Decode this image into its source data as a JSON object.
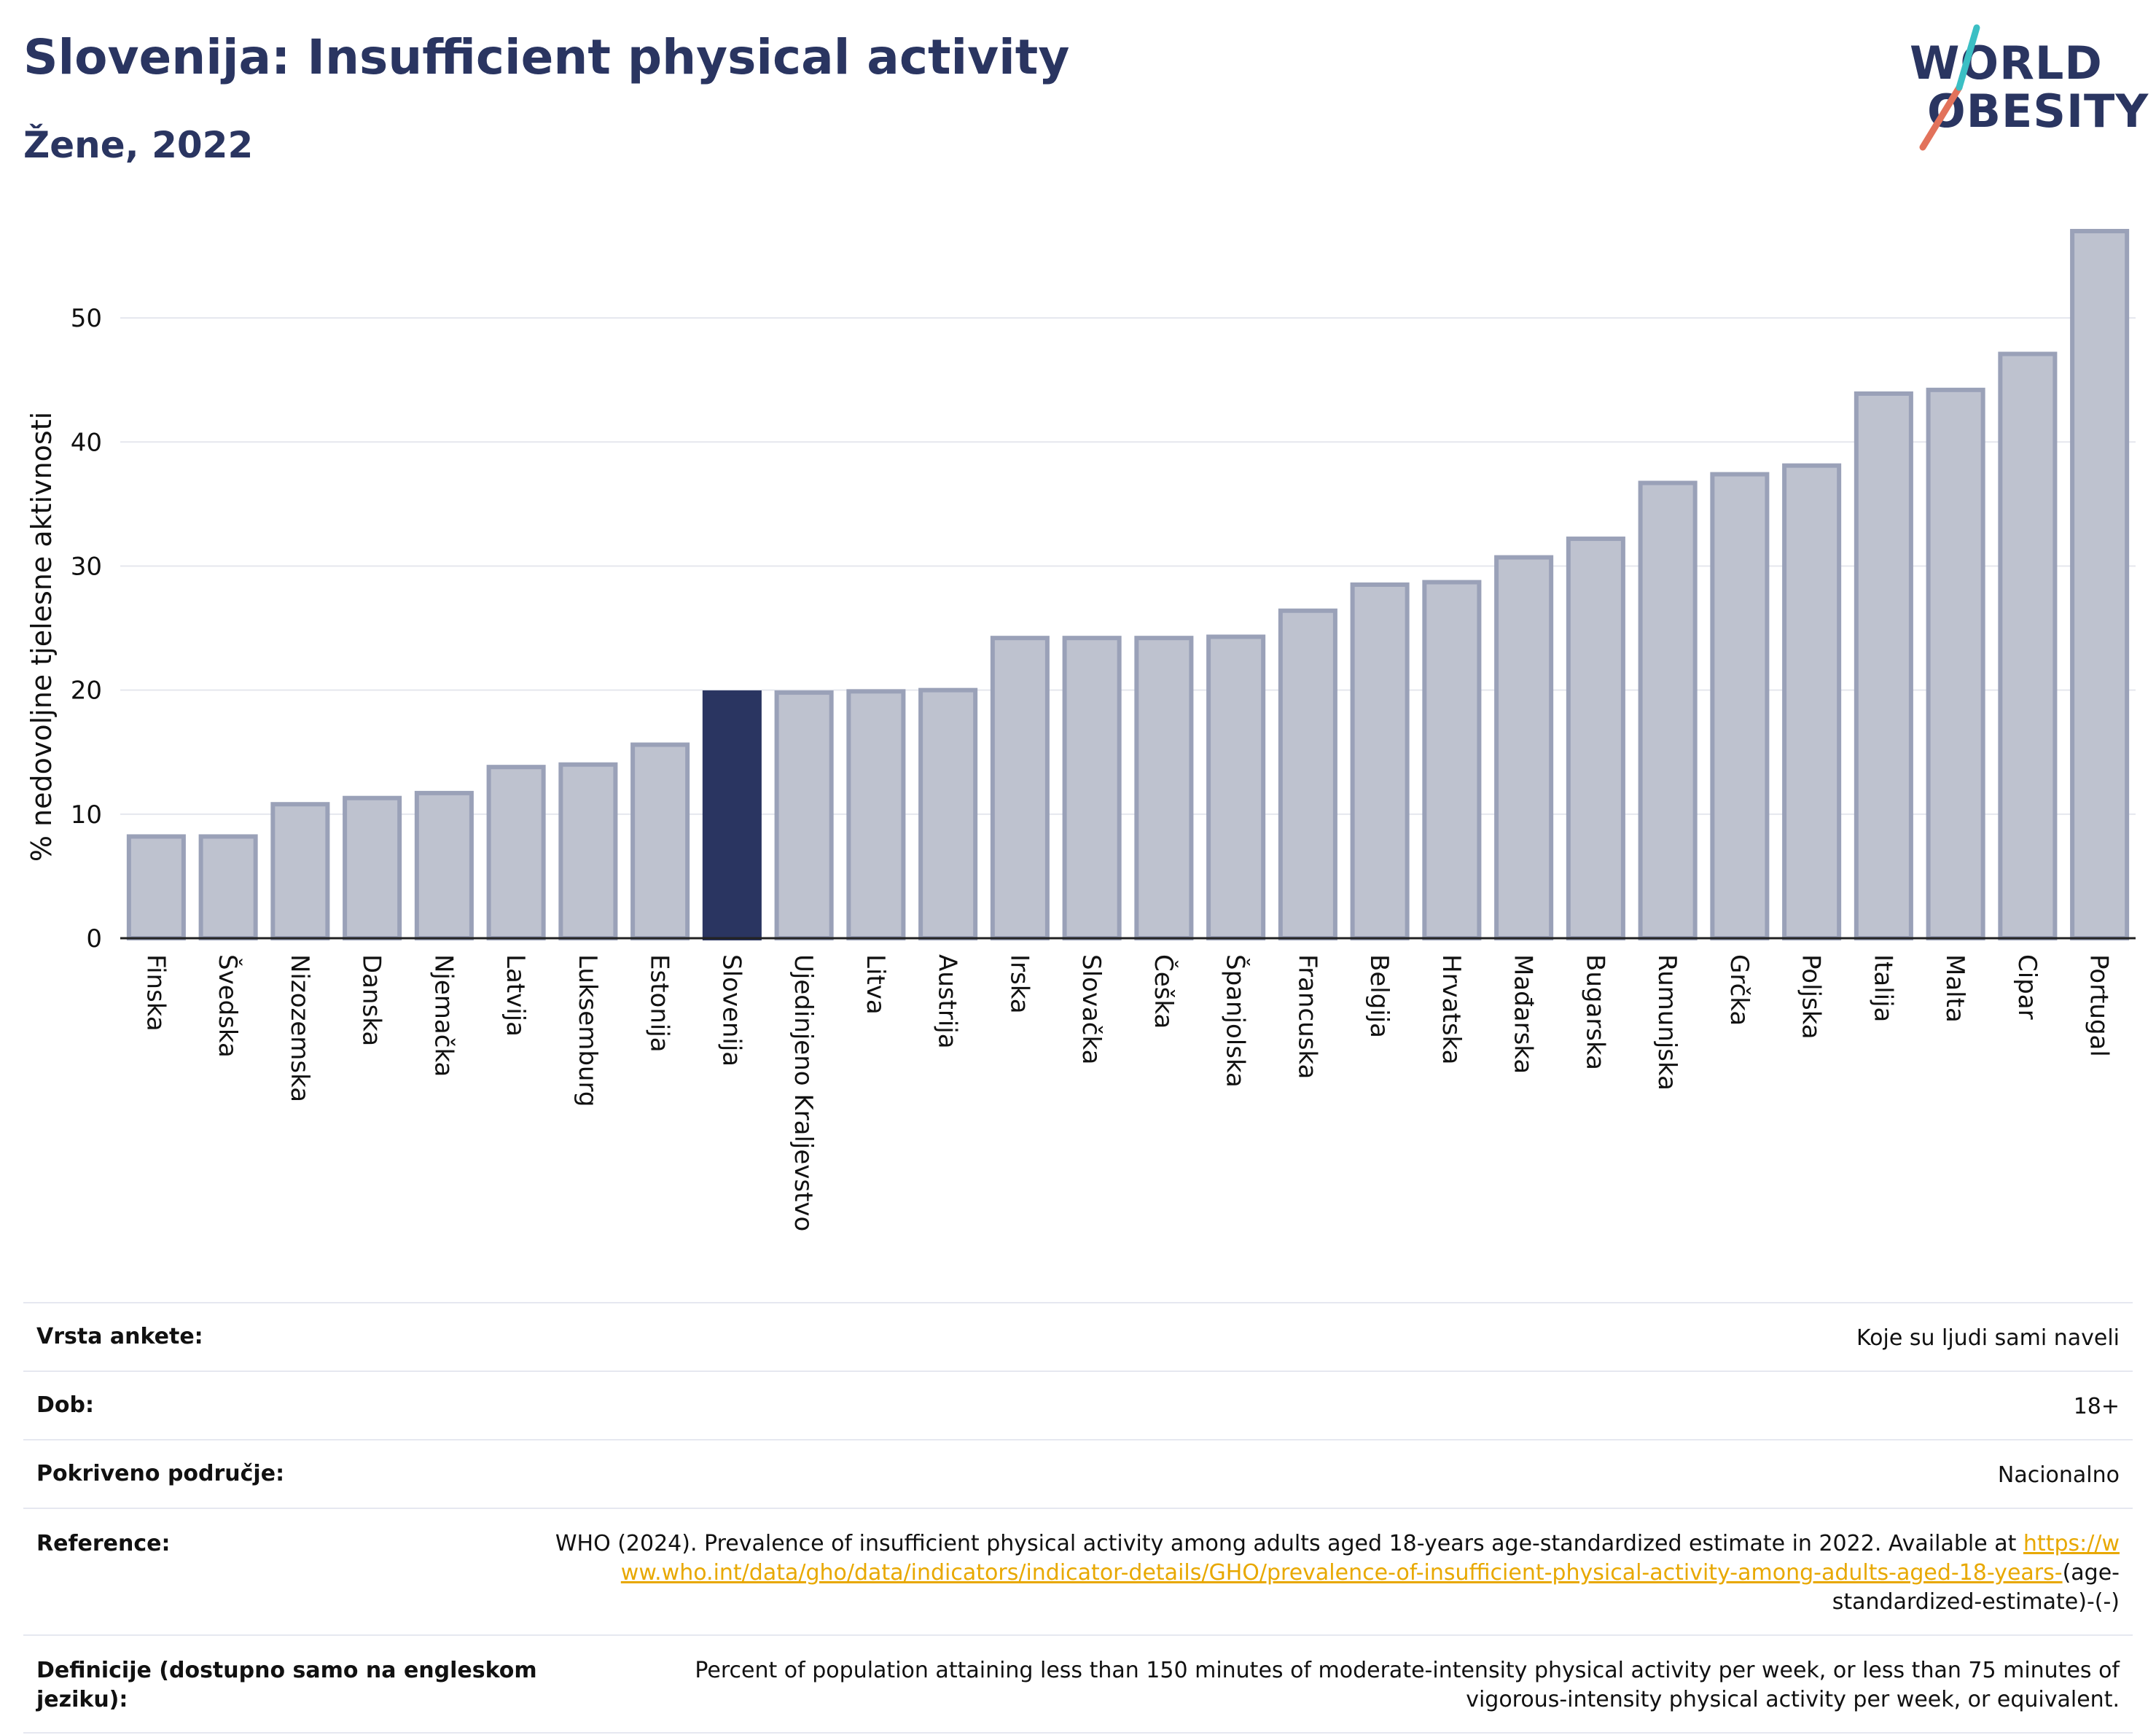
{
  "header": {
    "title": "Slovenija: Insufficient physical activity",
    "subtitle": "Žene, 2022"
  },
  "logo": {
    "line1": "WORLD",
    "line2": "OBESITY",
    "accent_colors": [
      "#e2725b",
      "#3bbfc4"
    ]
  },
  "colors": {
    "highlight": "#2a3561",
    "bar_fill": "#bec2cf",
    "bar_stroke": "#9aa1b8",
    "grid": "#e5e7ee"
  },
  "chart_data": {
    "type": "bar",
    "title": "Slovenija: Insufficient physical activity",
    "subtitle": "Žene, 2022",
    "xlabel": "",
    "ylabel": "% nedovoljne tjelesne aktivnosti",
    "ylim": [
      0,
      58
    ],
    "yticks": [
      0,
      10,
      20,
      30,
      40,
      50
    ],
    "grid": true,
    "highlight_category": "Slovenija",
    "categories": [
      "Finska",
      "Švedska",
      "Nizozemska",
      "Danska",
      "Njemačka",
      "Latvija",
      "Luksemburg",
      "Estonija",
      "Slovenija",
      "Ujedinjeno Kraljevstvo",
      "Litva",
      "Austrija",
      "Irska",
      "Slovačka",
      "Češka",
      "Španjolska",
      "Francuska",
      "Belgija",
      "Hrvatska",
      "Mađarska",
      "Bugarska",
      "Rumunjska",
      "Grčka",
      "Poljska",
      "Italija",
      "Malta",
      "Cipar",
      "Portugal"
    ],
    "values": [
      8.2,
      8.2,
      10.8,
      11.3,
      11.7,
      13.8,
      14.0,
      15.6,
      19.8,
      19.8,
      19.9,
      20.0,
      24.2,
      24.2,
      24.2,
      24.3,
      26.4,
      28.5,
      28.7,
      30.7,
      32.2,
      36.7,
      37.4,
      38.1,
      43.9,
      44.2,
      47.1,
      57.0
    ]
  },
  "table": {
    "survey_type_label": "Vrsta ankete:",
    "survey_type_value": "Koje su ljudi sami naveli",
    "age_label": "Dob:",
    "age_value": "18+",
    "coverage_label": "Pokriveno područje:",
    "coverage_value": "Nacionalno",
    "reference_label": "Reference:",
    "reference_text": "WHO (2024). Prevalence of insufficient physical activity among adults aged 18-years age-standardized estimate in 2022. Available at",
    "reference_link": "https://www.who.int/data/gho/data/indicators/indicator-details/GHO/prevalence-of-insufficient-physical-activity-among-adults-aged-18-years-",
    "reference_suffix": "(age-standardized-estimate)-(-)",
    "definition_label": "Definicije (dostupno samo na engleskom jeziku):",
    "definition_value": "Percent of population attaining less than 150 minutes of moderate-intensity physical activity per week, or less than 75 minutes of vigorous-intensity physical activity per week, or equivalent."
  }
}
